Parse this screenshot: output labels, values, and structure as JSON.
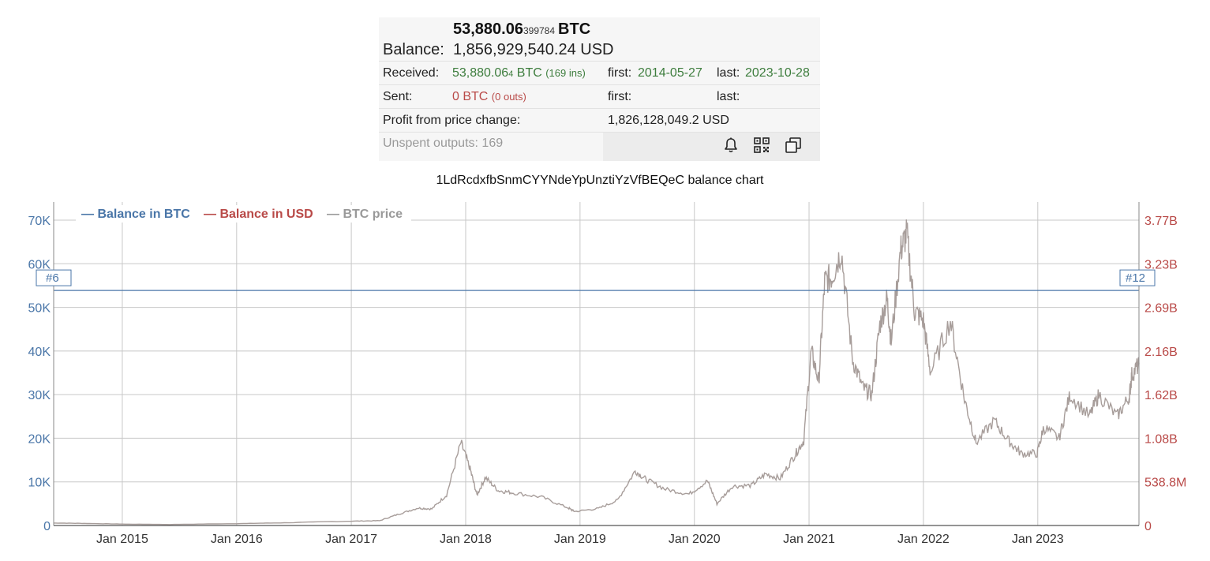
{
  "summary": {
    "btc_main": "53,880.06",
    "btc_frac": "399784",
    "btc_unit": "BTC",
    "balance_label": "Balance:",
    "balance_usd": "1,856,929,540.24 USD",
    "received_label": "Received:",
    "received_main": "53,880.06",
    "received_frac": "4",
    "received_unit": "BTC",
    "received_ins": "(169 ins)",
    "received_first_label": "first:",
    "received_first": "2014-05-27",
    "received_last_label": "last:",
    "received_last": "2023-10-28",
    "sent_label": "Sent:",
    "sent_value": "0 BTC",
    "sent_outs": "(0 outs)",
    "sent_first_label": "first:",
    "sent_last_label": "last:",
    "profit_label": "Profit from price change:",
    "profit_value": "1,826,128,049.2 USD",
    "unspent": "Unspent outputs: 169"
  },
  "icons": [
    "bell-icon",
    "qr-code-icon",
    "copy-icon"
  ],
  "colors": {
    "btc": "#4a76a8",
    "usd": "#b94a48",
    "price": "#a79d9a",
    "green": "#3d7d3d",
    "grid": "#c8c8c8"
  },
  "chart_data": {
    "type": "line",
    "title": "1LdRcdxfbSnmCYYNdeYpUnztiYzVfBEQeC balance chart",
    "legend": [
      {
        "name": "Balance in BTC",
        "color": "#4a76a8"
      },
      {
        "name": "Balance in USD",
        "color": "#b94a48"
      },
      {
        "name": "BTC price",
        "color": "#999999"
      }
    ],
    "legend_position": "top-left",
    "grid": true,
    "x_range": [
      "2014-05-27",
      "2023-11-20"
    ],
    "x_ticks": [
      "Jan 2015",
      "Jan 2016",
      "Jan 2017",
      "Jan 2018",
      "Jan 2019",
      "Jan 2020",
      "Jan 2021",
      "Jan 2022",
      "Jan 2023"
    ],
    "x_tick_dates": [
      "2015-01-01",
      "2016-01-01",
      "2017-01-01",
      "2018-01-01",
      "2019-01-01",
      "2020-01-01",
      "2021-01-01",
      "2022-01-01",
      "2023-01-01"
    ],
    "y_left_ticks": [
      "0",
      "10K",
      "20K",
      "30K",
      "40K",
      "50K",
      "60K",
      "70K"
    ],
    "y_left_range": [
      0,
      70000
    ],
    "y_right_ticks": [
      "0",
      "538.8M",
      "1.08B",
      "1.62B",
      "2.16B",
      "2.69B",
      "3.23B",
      "3.77B"
    ],
    "y_right_range": [
      0,
      3770000000
    ],
    "flags": [
      "#6",
      "#12"
    ],
    "series": [
      {
        "name": "Balance in BTC",
        "x": [
          "2014-05-27",
          "2023-11-20"
        ],
        "values": [
          53880,
          53880
        ]
      },
      {
        "name": "BTC price",
        "x": [
          "2014-05-27",
          "2014-09-01",
          "2015-01-01",
          "2015-06-01",
          "2016-01-01",
          "2016-06-01",
          "2017-01-01",
          "2017-04-01",
          "2017-06-01",
          "2017-08-01",
          "2017-09-15",
          "2017-11-01",
          "2017-12-17",
          "2018-01-15",
          "2018-02-06",
          "2018-03-05",
          "2018-04-15",
          "2018-06-01",
          "2018-09-01",
          "2018-11-25",
          "2018-12-15",
          "2019-03-01",
          "2019-05-01",
          "2019-06-26",
          "2019-08-01",
          "2019-10-01",
          "2019-12-15",
          "2020-02-12",
          "2020-03-13",
          "2020-05-01",
          "2020-07-01",
          "2020-08-15",
          "2020-10-01",
          "2020-11-15",
          "2020-12-15",
          "2021-01-08",
          "2021-02-01",
          "2021-02-20",
          "2021-03-15",
          "2021-04-14",
          "2021-05-20",
          "2021-06-22",
          "2021-07-20",
          "2021-08-15",
          "2021-09-07",
          "2021-09-20",
          "2021-10-20",
          "2021-11-09",
          "2021-12-04",
          "2022-01-01",
          "2022-01-24",
          "2022-03-28",
          "2022-05-12",
          "2022-06-18",
          "2022-08-15",
          "2022-10-01",
          "2022-11-09",
          "2022-12-30",
          "2023-01-20",
          "2023-03-10",
          "2023-04-14",
          "2023-06-15",
          "2023-07-15",
          "2023-09-11",
          "2023-10-20",
          "2023-10-28",
          "2023-11-20"
        ],
        "values": [
          570,
          480,
          320,
          230,
          430,
          620,
          1000,
          1100,
          2600,
          4000,
          3800,
          7000,
          19000,
          13000,
          7000,
          11000,
          8000,
          7500,
          6500,
          4000,
          3200,
          3900,
          5800,
          12500,
          10500,
          8300,
          7200,
          10200,
          5000,
          9000,
          9200,
          11800,
          10800,
          16000,
          19500,
          40000,
          33000,
          56000,
          57000,
          63000,
          38000,
          31500,
          30000,
          46000,
          52000,
          42000,
          63000,
          67000,
          49000,
          47000,
          35000,
          47000,
          29000,
          19000,
          24000,
          19300,
          16500,
          16500,
          22500,
          20000,
          30000,
          25000,
          30000,
          25000,
          29500,
          34500,
          37000
        ]
      }
    ]
  }
}
